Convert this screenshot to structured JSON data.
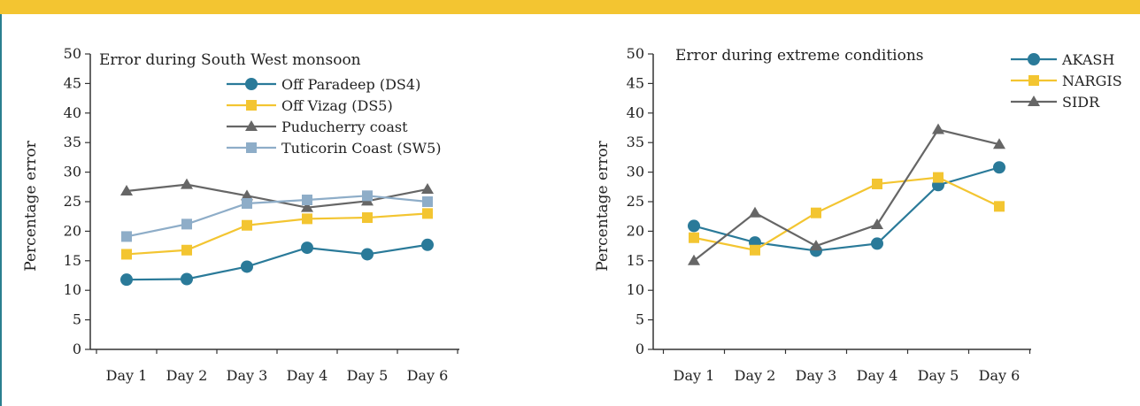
{
  "chart_data": [
    {
      "type": "line",
      "title": "Error during South West monsoon",
      "xlabel": "",
      "ylabel": "Percentage error",
      "ylim": [
        0,
        50
      ],
      "yticks": [
        0,
        5,
        10,
        15,
        20,
        25,
        30,
        35,
        40,
        45,
        50
      ],
      "categories": [
        "Day 1",
        "Day 2",
        "Day 3",
        "Day 4",
        "Day 5",
        "Day 6"
      ],
      "legend_position": "top-right",
      "grid": false,
      "series": [
        {
          "name": "Off Paradeep (DS4)",
          "color": "#2a7a99",
          "marker": "circle",
          "values": [
            11.8,
            11.9,
            14.0,
            17.2,
            16.1,
            17.7
          ]
        },
        {
          "name": "Off Vizag (DS5)",
          "color": "#f3c531",
          "marker": "square",
          "values": [
            16.1,
            16.8,
            21.0,
            22.1,
            22.3,
            23.0
          ]
        },
        {
          "name": "Puducherry coast",
          "color": "#666666",
          "marker": "triangle",
          "values": [
            26.8,
            27.9,
            26.0,
            24.0,
            25.1,
            27.1
          ]
        },
        {
          "name": "Tuticorin Coast (SW5)",
          "color": "#8eadc8",
          "marker": "square",
          "values": [
            19.1,
            21.2,
            24.7,
            25.3,
            26.0,
            25.0
          ]
        }
      ]
    },
    {
      "type": "line",
      "title": "Error during extreme conditions",
      "xlabel": "",
      "ylabel": "Percentage error",
      "ylim": [
        0,
        50
      ],
      "yticks": [
        0,
        5,
        10,
        15,
        20,
        25,
        30,
        35,
        40,
        45,
        50
      ],
      "categories": [
        "Day 1",
        "Day 2",
        "Day 3",
        "Day 4",
        "Day 5",
        "Day 6"
      ],
      "legend_position": "top-right",
      "grid": false,
      "series": [
        {
          "name": "AKASH",
          "color": "#2a7a99",
          "marker": "circle",
          "values": [
            20.9,
            18.1,
            16.7,
            17.9,
            27.8,
            30.8
          ]
        },
        {
          "name": "NARGIS",
          "color": "#f3c531",
          "marker": "square",
          "values": [
            18.9,
            16.8,
            23.1,
            28.0,
            29.1,
            24.2
          ]
        },
        {
          "name": "SIDR",
          "color": "#666666",
          "marker": "triangle",
          "values": [
            15.0,
            23.1,
            17.5,
            21.1,
            37.2,
            34.7
          ]
        }
      ]
    }
  ]
}
